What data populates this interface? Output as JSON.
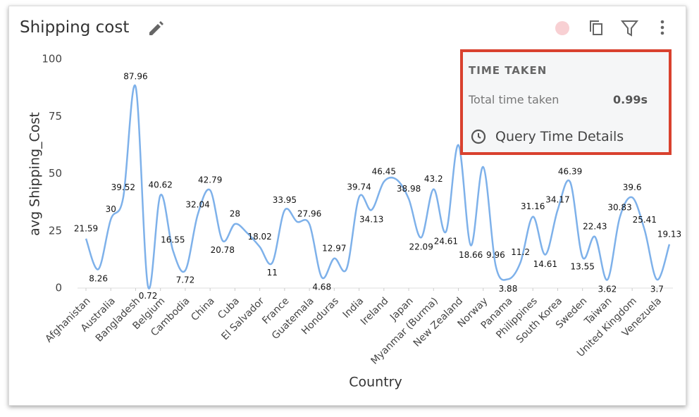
{
  "widget": {
    "title": "Shipping cost"
  },
  "popup": {
    "heading": "TIME TAKEN",
    "label": "Total time taken",
    "value": "0.99s",
    "link": "Query Time Details"
  },
  "chart_data": {
    "type": "line",
    "ylabel": "avg Shipping_Cost",
    "xlabel": "Country",
    "categories": [
      "Afghanistan",
      null,
      "Australia",
      null,
      "Bangladesh",
      null,
      "Belgium",
      null,
      "Cambodia",
      null,
      "China",
      null,
      "Cuba",
      null,
      "El Salvador",
      null,
      "France",
      null,
      "Guatemala",
      null,
      "Honduras",
      null,
      "India",
      null,
      "Ireland",
      null,
      "Japan",
      null,
      "Myanmar (Burma)",
      null,
      "New Zealand",
      null,
      "Norway",
      null,
      "Panama",
      null,
      "Philippines",
      null,
      "South Korea",
      null,
      "Sweden",
      null,
      "Taiwan",
      null,
      "United Kingdom",
      null,
      "Venezuela",
      null
    ],
    "values": [
      21.59,
      8.26,
      30,
      39.52,
      87.96,
      0.72,
      40.62,
      16.55,
      7.72,
      32.04,
      42.79,
      20.78,
      28,
      24,
      18.02,
      11,
      33.95,
      29,
      27.96,
      4.68,
      12.97,
      8.5,
      39.74,
      34.13,
      46.45,
      47.5,
      38.98,
      22.09,
      43.2,
      24.61,
      62.5,
      18.66,
      52.9,
      9.96,
      3.88,
      11.2,
      31.16,
      14.61,
      34.17,
      46.39,
      13.55,
      22.43,
      3.62,
      30.83,
      39.6,
      25.41,
      3.7,
      19.13
    ],
    "value_labels": [
      "21.59",
      "8.26",
      "30",
      "39.52",
      "87.96",
      "0.72",
      "40.62",
      "16.55",
      "7.72",
      "32.04",
      "42.79",
      "20.78",
      "28",
      null,
      "18.02",
      "11",
      "33.95",
      null,
      "27.96",
      "4.68",
      "12.97",
      null,
      "39.74",
      "34.13",
      "46.45",
      null,
      "38.98",
      "22.09",
      "43.2",
      "24.61",
      null,
      "18.66",
      null,
      "9.96",
      "3.88",
      "11.2",
      "31.16",
      "14.61",
      "34.17",
      "46.39",
      "13.55",
      "22.43",
      "3.62",
      "30.83",
      "39.6",
      "25.41",
      "3.7",
      "19.13"
    ],
    "color": "#7eb1ea",
    "ylim": [
      0,
      100
    ],
    "yticks": [
      0,
      25,
      50,
      75,
      100
    ],
    "grid": false
  }
}
